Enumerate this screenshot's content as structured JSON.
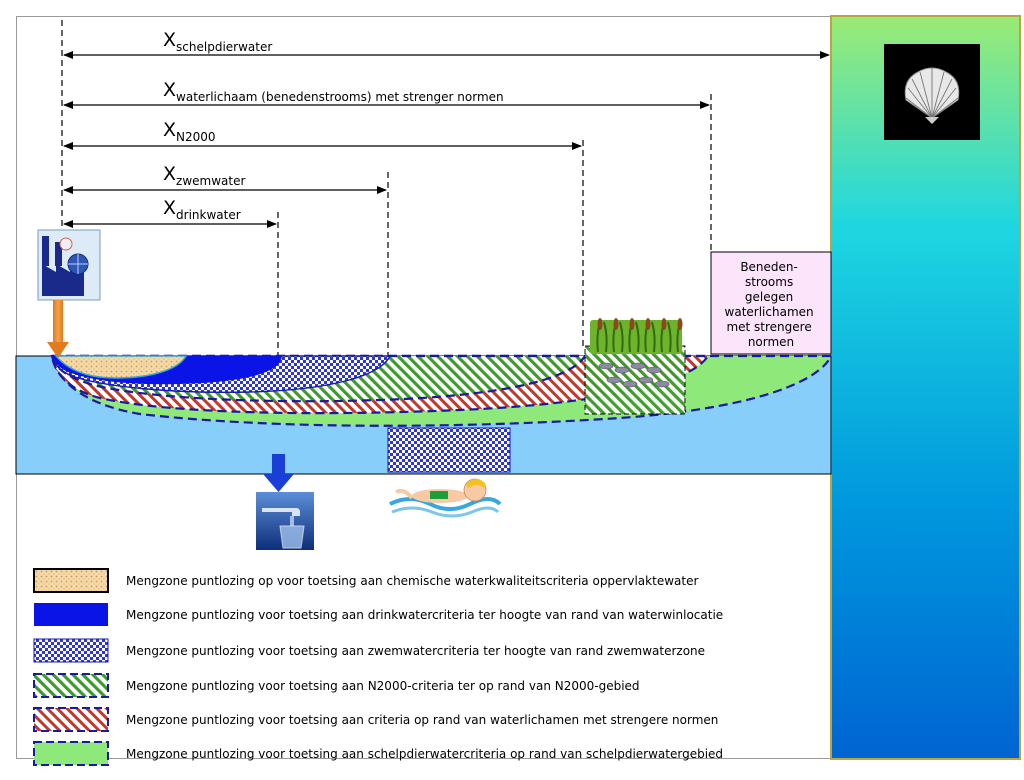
{
  "dimensions": [
    {
      "main": "X",
      "sub": "schelpdierwater"
    },
    {
      "main": "X",
      "sub": "waterlichaam (benedenstrooms) met strenger normen"
    },
    {
      "main": "X",
      "sub": "N2000"
    },
    {
      "main": "X",
      "sub": "zwemwater"
    },
    {
      "main": "X",
      "sub": "drinkwater"
    }
  ],
  "downstream_box": {
    "lines": [
      "Beneden-",
      "strooms",
      "gelegen",
      "waterlichamen",
      "met strengere",
      "normen"
    ]
  },
  "legend": [
    {
      "text": "Mengzone puntlozing op voor toetsing aan chemische waterkwaliteitscriteria oppervlaktewater"
    },
    {
      "text": "Mengzone puntlozing voor toetsing aan drinkwatercriteria ter hoogte van rand van waterwinlocatie"
    },
    {
      "text": "Mengzone puntlozing voor toetsing aan zwemwatercriteria ter hoogte van rand zwemwaterzone"
    },
    {
      "text": "Mengzone puntlozing voor toetsing aan N2000-criteria ter op rand  van N2000-gebied"
    },
    {
      "text": "Mengzone puntlozing voor toetsing aan criteria  op rand  van waterlichamen met strengere normen"
    },
    {
      "text": "Mengzone puntlozing voor toetsing aan schelpdierwatercriteria op rand  van schelpdierwatergebied"
    }
  ],
  "colors": {
    "river": "#87CEFA",
    "chemical_zone": "#F6D9A8",
    "drinking_zone": "#0A14E6",
    "swimming_zone": "#2A34E0",
    "n2000_zone": "#3F9A2E",
    "strict_zone": "#C0392B",
    "shellfish_zone": "#8EE87A",
    "outline": "#1A1AA0"
  },
  "icons": [
    "factory-icon",
    "shell-icon",
    "tap-glass-icon",
    "swimmer-icon",
    "reeds-icon",
    "fish-icon",
    "discharge-arrow-icon",
    "abstraction-arrow-icon"
  ]
}
